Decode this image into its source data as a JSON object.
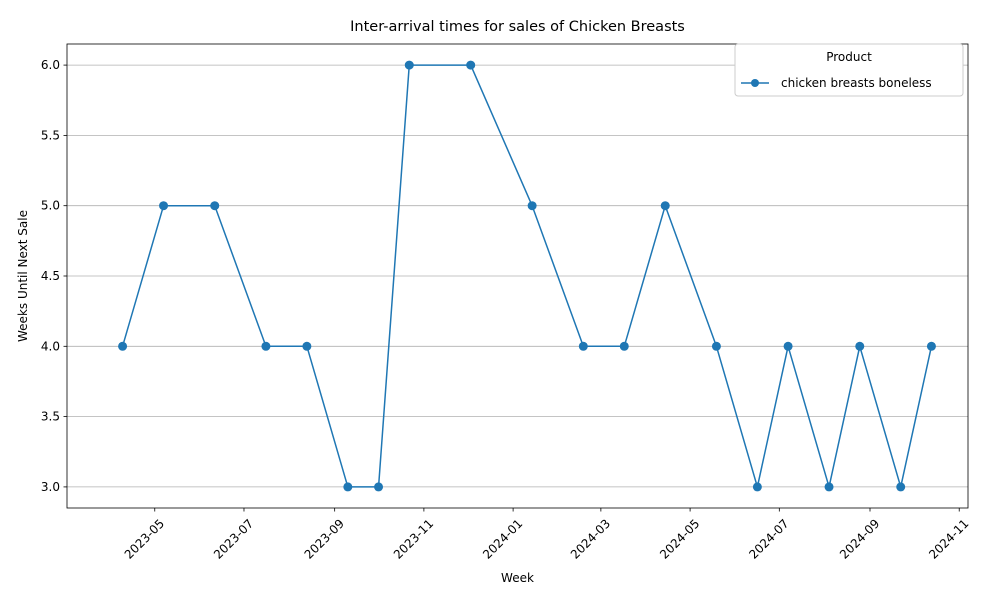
{
  "chart_data": {
    "type": "line",
    "title": "Inter-arrival times for sales of Chicken Breasts",
    "xlabel": "Week",
    "ylabel": "Weeks Until Next Sale",
    "legend": {
      "title": "Product",
      "placement": "top-right"
    },
    "grid": "horizontal",
    "ylim": [
      2.85,
      6.15
    ],
    "xlim": [
      "2023-03-02",
      "2024-11-07"
    ],
    "y_ticks": [
      3.0,
      3.5,
      4.0,
      4.5,
      5.0,
      5.5,
      6.0
    ],
    "y_tick_labels": [
      "3.0",
      "3.5",
      "4.0",
      "4.5",
      "5.0",
      "5.5",
      "6.0"
    ],
    "x_ticks": [
      "2023-05-01",
      "2023-07-01",
      "2023-09-01",
      "2023-11-01",
      "2024-01-01",
      "2024-03-01",
      "2024-05-01",
      "2024-07-01",
      "2024-09-01",
      "2024-11-01"
    ],
    "x_tick_labels": [
      "2023-05",
      "2023-07",
      "2023-09",
      "2023-11",
      "2024-01",
      "2024-03",
      "2024-05",
      "2024-07",
      "2024-09",
      "2024-11"
    ],
    "series": [
      {
        "name": "chicken breasts boneless",
        "color": "#1f77b4",
        "marker": "circle",
        "x": [
          "2023-04-09",
          "2023-05-07",
          "2023-06-11",
          "2023-07-16",
          "2023-08-13",
          "2023-09-10",
          "2023-10-01",
          "2023-10-22",
          "2023-12-03",
          "2024-01-14",
          "2024-02-18",
          "2024-03-17",
          "2024-04-14",
          "2024-05-19",
          "2024-06-16",
          "2024-07-07",
          "2024-08-04",
          "2024-08-25",
          "2024-09-22",
          "2024-10-13"
        ],
        "values": [
          4,
          5,
          5,
          4,
          4,
          3,
          3,
          6,
          6,
          5,
          4,
          4,
          5,
          4,
          3,
          4,
          3,
          4,
          3,
          4
        ]
      }
    ]
  }
}
